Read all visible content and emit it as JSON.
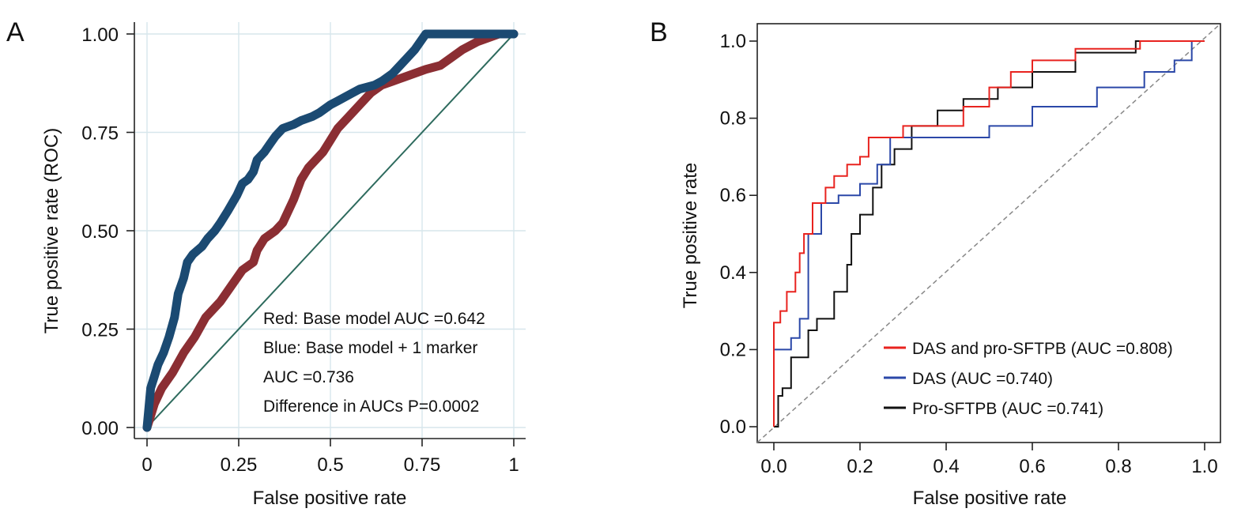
{
  "chart_data": [
    {
      "panel_label": "A",
      "type": "line",
      "xlabel": "False positive rate",
      "ylabel": "True positive rate (ROC)",
      "xlim": [
        0,
        1
      ],
      "ylim": [
        0,
        1
      ],
      "xticks": [
        0,
        0.25,
        0.5,
        0.75,
        1
      ],
      "xtick_labels": [
        "0",
        "0.25",
        "0.5",
        "0.75",
        "1"
      ],
      "yticks": [
        0,
        0.25,
        0.5,
        0.75,
        1
      ],
      "ytick_labels": [
        "0.00",
        "0.25",
        "0.50",
        "0.75",
        "1.00"
      ],
      "grid": true,
      "annotations": [
        "Red: Base model AUC =0.642",
        "Blue: Base model + 1 marker",
        "AUC =0.736",
        "Difference in AUCs P=0.0002"
      ],
      "series": [
        {
          "color": "#1b4a72",
          "marker_style": "thick-dots",
          "x": [
            0,
            0.005,
            0.01,
            0.02,
            0.03,
            0.045,
            0.06,
            0.075,
            0.085,
            0.1,
            0.11,
            0.125,
            0.15,
            0.165,
            0.185,
            0.2,
            0.22,
            0.245,
            0.26,
            0.275,
            0.29,
            0.3,
            0.32,
            0.335,
            0.35,
            0.37,
            0.4,
            0.42,
            0.45,
            0.47,
            0.5,
            0.52,
            0.56,
            0.58,
            0.62,
            0.64,
            0.67,
            0.7,
            0.73,
            0.76,
            0.8,
            0.87,
            0.95,
            1
          ],
          "y": [
            0,
            0.05,
            0.1,
            0.13,
            0.16,
            0.19,
            0.23,
            0.28,
            0.34,
            0.38,
            0.42,
            0.44,
            0.46,
            0.48,
            0.5,
            0.52,
            0.55,
            0.59,
            0.62,
            0.63,
            0.65,
            0.68,
            0.7,
            0.72,
            0.74,
            0.76,
            0.77,
            0.78,
            0.79,
            0.8,
            0.82,
            0.83,
            0.85,
            0.86,
            0.87,
            0.88,
            0.9,
            0.93,
            0.96,
            1,
            1,
            1,
            1,
            1
          ]
        },
        {
          "color": "#8b2e33",
          "marker_style": "thick-dots",
          "x": [
            0,
            0.02,
            0.04,
            0.07,
            0.1,
            0.13,
            0.16,
            0.2,
            0.23,
            0.26,
            0.29,
            0.3,
            0.32,
            0.35,
            0.37,
            0.4,
            0.42,
            0.44,
            0.46,
            0.48,
            0.5,
            0.52,
            0.55,
            0.58,
            0.61,
            0.64,
            0.67,
            0.7,
            0.73,
            0.76,
            0.8,
            0.83,
            0.86,
            0.9,
            0.93,
            0.96,
            1
          ],
          "y": [
            0,
            0.06,
            0.1,
            0.14,
            0.19,
            0.23,
            0.28,
            0.32,
            0.36,
            0.4,
            0.42,
            0.45,
            0.48,
            0.5,
            0.52,
            0.58,
            0.63,
            0.66,
            0.68,
            0.7,
            0.73,
            0.76,
            0.79,
            0.82,
            0.85,
            0.87,
            0.88,
            0.89,
            0.9,
            0.91,
            0.92,
            0.94,
            0.96,
            0.98,
            0.99,
            1,
            1
          ]
        },
        {
          "color": "#2e6b5e",
          "marker_style": "line",
          "x": [
            0,
            1
          ],
          "y": [
            0,
            1
          ]
        }
      ]
    },
    {
      "panel_label": "B",
      "type": "line",
      "xlabel": "False positive rate",
      "ylabel": "True positive rate",
      "xlim": [
        0,
        1
      ],
      "ylim": [
        0,
        1
      ],
      "xticks": [
        0,
        0.2,
        0.4,
        0.6,
        0.8,
        1
      ],
      "xtick_labels": [
        "0.0",
        "0.2",
        "0.4",
        "0.6",
        "0.8",
        "1.0"
      ],
      "yticks": [
        0,
        0.2,
        0.4,
        0.6,
        0.8,
        1
      ],
      "ytick_labels": [
        "0.0",
        "0.2",
        "0.4",
        "0.6",
        "0.8",
        "1.0"
      ],
      "grid": false,
      "legend_position": "bottom-right",
      "series": [
        {
          "name": "DAS and pro-SFTPB (AUC =0.808)",
          "color": "#e8231f",
          "marker_style": "step",
          "x": [
            0,
            0,
            0.015,
            0.015,
            0.03,
            0.03,
            0.05,
            0.05,
            0.06,
            0.06,
            0.07,
            0.07,
            0.09,
            0.09,
            0.12,
            0.12,
            0.14,
            0.14,
            0.17,
            0.17,
            0.2,
            0.2,
            0.22,
            0.22,
            0.3,
            0.3,
            0.44,
            0.44,
            0.5,
            0.5,
            0.55,
            0.55,
            0.6,
            0.6,
            0.7,
            0.7,
            0.85,
            0.85,
            1
          ],
          "y": [
            0,
            0.27,
            0.27,
            0.3,
            0.3,
            0.35,
            0.35,
            0.4,
            0.4,
            0.45,
            0.45,
            0.5,
            0.5,
            0.58,
            0.58,
            0.62,
            0.62,
            0.65,
            0.65,
            0.68,
            0.68,
            0.7,
            0.7,
            0.75,
            0.75,
            0.78,
            0.78,
            0.83,
            0.83,
            0.88,
            0.88,
            0.92,
            0.92,
            0.95,
            0.95,
            0.98,
            0.98,
            1,
            1
          ]
        },
        {
          "name": "DAS (AUC =0.740)",
          "color": "#2b48a8",
          "marker_style": "step",
          "x": [
            0,
            0,
            0.04,
            0.04,
            0.06,
            0.06,
            0.08,
            0.08,
            0.11,
            0.11,
            0.15,
            0.15,
            0.2,
            0.2,
            0.24,
            0.24,
            0.27,
            0.27,
            0.33,
            0.33,
            0.5,
            0.5,
            0.6,
            0.6,
            0.75,
            0.75,
            0.86,
            0.86,
            0.93,
            0.93,
            0.97,
            0.97,
            1
          ],
          "y": [
            0,
            0.2,
            0.2,
            0.23,
            0.23,
            0.28,
            0.28,
            0.5,
            0.5,
            0.58,
            0.58,
            0.6,
            0.6,
            0.63,
            0.63,
            0.68,
            0.68,
            0.75,
            0.75,
            0.75,
            0.75,
            0.78,
            0.78,
            0.83,
            0.83,
            0.88,
            0.88,
            0.92,
            0.92,
            0.95,
            0.95,
            1,
            1
          ]
        },
        {
          "name": "Pro-SFTPB (AUC =0.741)",
          "color": "#111111",
          "marker_style": "step",
          "x": [
            0,
            0.01,
            0.01,
            0.02,
            0.02,
            0.04,
            0.04,
            0.08,
            0.08,
            0.1,
            0.1,
            0.14,
            0.14,
            0.17,
            0.17,
            0.18,
            0.18,
            0.2,
            0.2,
            0.23,
            0.23,
            0.25,
            0.25,
            0.28,
            0.28,
            0.32,
            0.32,
            0.38,
            0.38,
            0.44,
            0.44,
            0.52,
            0.52,
            0.6,
            0.6,
            0.7,
            0.7,
            0.84,
            0.84,
            1
          ],
          "y": [
            0,
            0,
            0.08,
            0.08,
            0.1,
            0.1,
            0.18,
            0.18,
            0.25,
            0.25,
            0.28,
            0.28,
            0.35,
            0.35,
            0.42,
            0.42,
            0.5,
            0.5,
            0.55,
            0.55,
            0.62,
            0.62,
            0.68,
            0.68,
            0.72,
            0.72,
            0.78,
            0.78,
            0.82,
            0.82,
            0.85,
            0.85,
            0.88,
            0.88,
            0.92,
            0.92,
            0.97,
            0.97,
            1,
            1
          ]
        },
        {
          "color": "#888888",
          "marker_style": "dashed",
          "x": [
            0,
            1
          ],
          "y": [
            0,
            1
          ]
        }
      ]
    }
  ]
}
